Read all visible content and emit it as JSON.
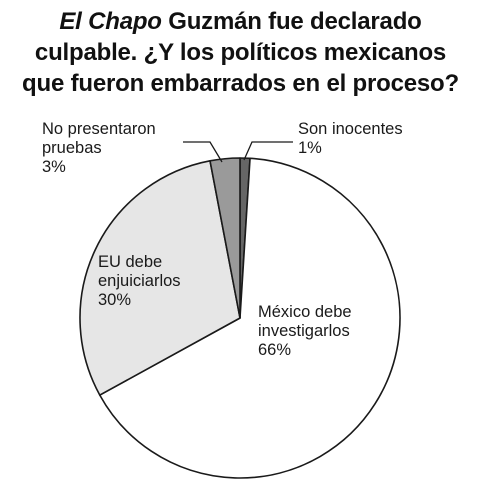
{
  "title": {
    "emphasis": "El Chapo",
    "line1_rest": " Guzmán fue declarado",
    "line2": "culpable. ¿Y los políticos mexicanos",
    "line3": "que fueron embarrados en el proceso?"
  },
  "chart_data": {
    "type": "pie",
    "title": "El Chapo Guzmán fue declarado culpable. ¿Y los políticos mexicanos que fueron embarrados en el proceso?",
    "start": "top, clockwise",
    "slices": [
      {
        "label": "Son inocentes",
        "value": 1,
        "value_label": "1%",
        "color": "#666666",
        "label_lines": [
          "Son inocentes",
          "1%"
        ]
      },
      {
        "label": "México debe investigarlos",
        "value": 66,
        "value_label": "66%",
        "color": "#ffffff",
        "label_lines": [
          "México debe",
          "investigarlos",
          "66%"
        ]
      },
      {
        "label": "EU debe enjuiciarlos",
        "value": 30,
        "value_label": "30%",
        "color": "#e6e6e6",
        "label_lines": [
          "EU debe",
          "enjuiciarlos",
          "30%"
        ]
      },
      {
        "label": "No presentaron pruebas",
        "value": 3,
        "value_label": "3%",
        "color": "#9a9a9a",
        "label_lines": [
          "No presentaron",
          "pruebas",
          "3%"
        ]
      }
    ]
  }
}
